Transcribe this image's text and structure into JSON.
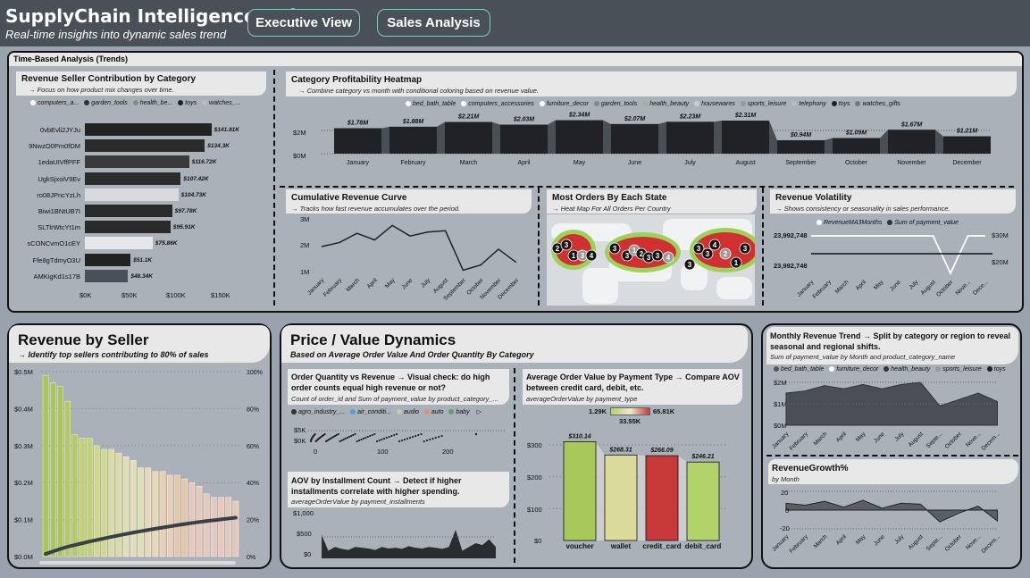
{
  "header": {
    "title": "SupplyChain Intelligence Hub",
    "subtitle": "Real-time insights into dynamic sales trend",
    "nav": [
      "Executive View",
      "Sales Analysis"
    ]
  },
  "time_section": {
    "label": "Time-Based Analysis (Trends)"
  },
  "seller_contrib": {
    "title": "Revenue Seller Contribution by Category",
    "sub": "→ Focus on how product mix changes over time.",
    "legend": [
      "computers_a...",
      "garden_tools",
      "health_be...",
      "toys",
      "watches_..."
    ],
    "axis": [
      "$0K",
      "$50K",
      "$100K",
      "$150K"
    ]
  },
  "heatmap": {
    "title": "Category Profitability Heatmap",
    "sub": "→ Combine category vs month with conditional coloring based on revenue value.",
    "legend": [
      "bed_bath_table",
      "computers_accessories",
      "furniture_decor",
      "garden_tools",
      "health_beauty",
      "housewares",
      "sports_leisure",
      "telephony",
      "toys",
      "watches_gifts"
    ],
    "yaxis": [
      "$2M",
      "$0M"
    ]
  },
  "cumulative": {
    "title": "Cumulative Revenue Curve",
    "sub": "→ Tracks how fast revenue accumulates over the period.",
    "yaxis": [
      "3M",
      "2M",
      "1M"
    ]
  },
  "orders_state": {
    "title": "Most Orders By Each State",
    "sub": "→ Heat Map For All Orders Per Country",
    "markers": [
      "2",
      "3",
      "1",
      "3",
      "4",
      "3",
      "3",
      "1",
      "2",
      "3",
      "3",
      "4",
      "3",
      "3",
      "4",
      "2",
      "1",
      "3",
      "3"
    ]
  },
  "volatility": {
    "title": "Revenue Volatility",
    "sub": "→ Shows consistency or seasonality in sales performance.",
    "legend": [
      "RevenueMA3Months",
      "Sum of payment_value"
    ],
    "left_ticks": [
      "23,992,748",
      "23,992,748"
    ],
    "right_ticks": [
      "$30M",
      "$20M"
    ],
    "x": [
      "January",
      "February",
      "March",
      "April",
      "May",
      "June",
      "July",
      "August",
      "October",
      "Nove...",
      "Dece..."
    ]
  },
  "rev_seller": {
    "title": "Revenue by Seller",
    "sub": "→ Identify top sellers contributing to 80% of sales",
    "yaxis": [
      "$0.5M",
      "$0.4M",
      "$0.3M",
      "$0.2M",
      "$0.1M",
      "$0.0M"
    ],
    "y2axis": [
      "100%",
      "80%",
      "60%",
      "40%",
      "20%",
      "0%"
    ]
  },
  "price": {
    "title": "Price / Value Dynamics",
    "sub": "Based on Average Order Value And Order Quantity By Category"
  },
  "qty_rev": {
    "title": "Order Quantity vs Revenue → Visual check: do high order counts equal high revenue or not?",
    "sub": "Count of order_id and Sum of payment_value by product_category_...",
    "legend": [
      "agro_industry_...",
      "air_conditi...",
      "audio",
      "auto",
      "baby"
    ],
    "yaxis": [
      "$5K",
      "$0K"
    ],
    "xaxis": [
      "0",
      "100",
      "200"
    ]
  },
  "aov_inst": {
    "title": "AOV by Installment Count → Detect if higher installments correlate with higher spending.",
    "sub": "averageOrderValue by payment_installments",
    "yaxis": [
      "$1,000",
      "$500",
      "$0"
    ]
  },
  "aov_pay": {
    "title": "Average Order Value by Payment Type → Compare AOV between credit card, debit, etc.",
    "sub": "averageOrderValue by payment_type",
    "scale": [
      "1.29K",
      "33.55K",
      "65.81K"
    ],
    "yaxis": [
      "$300",
      "$200",
      "$100",
      "$0"
    ]
  },
  "monthly_trend": {
    "title": "Monthly Revenue Trend → Split by category or region to reveal seasonal and regional shifts.",
    "sub": "Sum of payment_value by Month and product_category_name",
    "legend": [
      "bed_bath_table",
      "furniture_decor",
      "health_beauty",
      "sports_leisure",
      "toys"
    ],
    "yaxis": [
      "$2M",
      "$1M",
      "$0M"
    ],
    "x": [
      "January",
      "February",
      "March",
      "April",
      "May",
      "June",
      "July",
      "August",
      "Septe...",
      "October",
      "Nove...",
      "Decem..."
    ]
  },
  "growth": {
    "title": "RevenueGrowth%",
    "sub": "by Month",
    "yaxis": [
      "20",
      "0",
      "-20"
    ],
    "x": [
      "January",
      "February",
      "March",
      "April",
      "May",
      "June",
      "July",
      "August",
      "Septe...",
      "October",
      "Nove...",
      "Decem..."
    ]
  },
  "chart_data": [
    {
      "type": "bar",
      "title": "Revenue Seller Contribution by Category",
      "categories": [
        "0vbEvli2JYJu",
        "9NwzO0Pm0fDM",
        "1edaUIVffPFF",
        "UgkSjxoiV9Ev",
        "ro08JPncYzLh",
        "Biwi1BNtUB7I",
        "SLTlrWtcYt1m",
        "sCONCvmO1cEY",
        "Ffe8gTdmyO3U",
        "AMKigKd1s17B"
      ],
      "values": [
        141.81,
        134.3,
        116.72,
        107.42,
        104.73,
        97.78,
        95.91,
        75.86,
        51.1,
        48.34
      ],
      "labels": [
        "$141.81K",
        "$134.3K",
        "$116.72K",
        "$107.42K",
        "$104.73K",
        "$97.78K",
        "$95.91K",
        "$75.86K",
        "$51.1K",
        "$48.34K"
      ],
      "xlim": [
        0,
        160
      ]
    },
    {
      "type": "area",
      "title": "Category Profitability Heatmap",
      "categories": [
        "January",
        "February",
        "March",
        "April",
        "May",
        "June",
        "July",
        "August",
        "September",
        "October",
        "November",
        "December"
      ],
      "values": [
        1.78,
        1.88,
        2.21,
        2.03,
        2.34,
        2.07,
        2.23,
        2.31,
        0.94,
        1.09,
        1.67,
        1.21
      ],
      "labels": [
        "$1.78M",
        "$1.88M",
        "$2.21M",
        "$2.03M",
        "$2.34M",
        "$2.07M",
        "$2.23M",
        "$2.31M",
        "$0.94M",
        "$1.09M",
        "$1.67M",
        "$1.21M"
      ]
    },
    {
      "type": "line",
      "title": "Cumulative Revenue Curve",
      "categories": [
        "January",
        "February",
        "March",
        "April",
        "May",
        "June",
        "July",
        "August",
        "September",
        "October",
        "November",
        "December"
      ],
      "values": [
        1.95,
        2.1,
        2.45,
        2.2,
        2.75,
        2.35,
        2.5,
        2.55,
        1.05,
        1.25,
        1.85,
        1.35
      ],
      "ylim": [
        1,
        3
      ]
    },
    {
      "type": "line",
      "title": "Revenue Volatility",
      "series": [
        {
          "name": "Sum of payment_value",
          "values": [
            1,
            1,
            1,
            1,
            1,
            1,
            1,
            1,
            0,
            1,
            1
          ]
        },
        {
          "name": "RevenueMA3Months",
          "values": [
            0.7,
            0.7,
            0.7,
            0.7,
            0.7,
            0.7,
            0.7,
            0.7,
            0.7,
            0.7,
            0.7
          ]
        }
      ]
    },
    {
      "type": "bar",
      "title": "Revenue by Seller",
      "values": [
        0.49,
        0.47,
        0.46,
        0.42,
        0.33,
        0.32,
        0.32,
        0.3,
        0.29,
        0.29,
        0.28,
        0.27,
        0.26,
        0.24,
        0.24,
        0.23,
        0.23,
        0.22,
        0.22,
        0.21,
        0.2,
        0.19,
        0.17,
        0.16,
        0.16,
        0.16,
        0.15
      ],
      "ylim": [
        0,
        0.5
      ],
      "pareto_end": 20
    },
    {
      "type": "bar",
      "title": "Average Order Value by Payment Type",
      "categories": [
        "voucher",
        "wallet",
        "credit_card",
        "debit_card"
      ],
      "values": [
        310.14,
        268.31,
        266.09,
        246.21
      ],
      "labels": [
        "$310.14",
        "$268.31",
        "$266.09",
        "$246.21"
      ],
      "colors": [
        "#a8c85a",
        "#dadb9a",
        "#c83a3a",
        "#b2d26a"
      ],
      "ylim": [
        0,
        350
      ]
    },
    {
      "type": "area",
      "title": "AOV by Installment Count",
      "values": [
        0.62,
        0.2,
        0.3,
        0.25,
        0.22,
        0.3,
        0.28,
        0.26,
        0.22,
        0.3,
        0.26,
        0.28,
        0.25,
        0.32,
        0.28,
        0.26,
        0.3,
        0.28,
        0.25,
        0.3,
        0.75,
        0.2,
        0.3,
        0.4,
        0.35,
        0.5,
        0.3
      ]
    },
    {
      "type": "area",
      "title": "Monthly Revenue Trend",
      "categories": [
        "January",
        "February",
        "March",
        "April",
        "May",
        "June",
        "July",
        "August",
        "Septe...",
        "October",
        "Nove...",
        "Decem..."
      ],
      "values": [
        1.5,
        1.6,
        1.85,
        1.7,
        1.9,
        1.7,
        1.9,
        2.0,
        0.9,
        1.2,
        1.5,
        1.1
      ]
    },
    {
      "type": "area",
      "title": "RevenueGrowth%",
      "categories": [
        "January",
        "February",
        "March",
        "April",
        "May",
        "June",
        "July",
        "August",
        "Septe...",
        "October",
        "Nove...",
        "Decem..."
      ],
      "values": [
        7,
        5,
        9,
        3,
        10,
        2,
        7,
        6,
        -12,
        -3,
        4,
        -11
      ]
    }
  ]
}
